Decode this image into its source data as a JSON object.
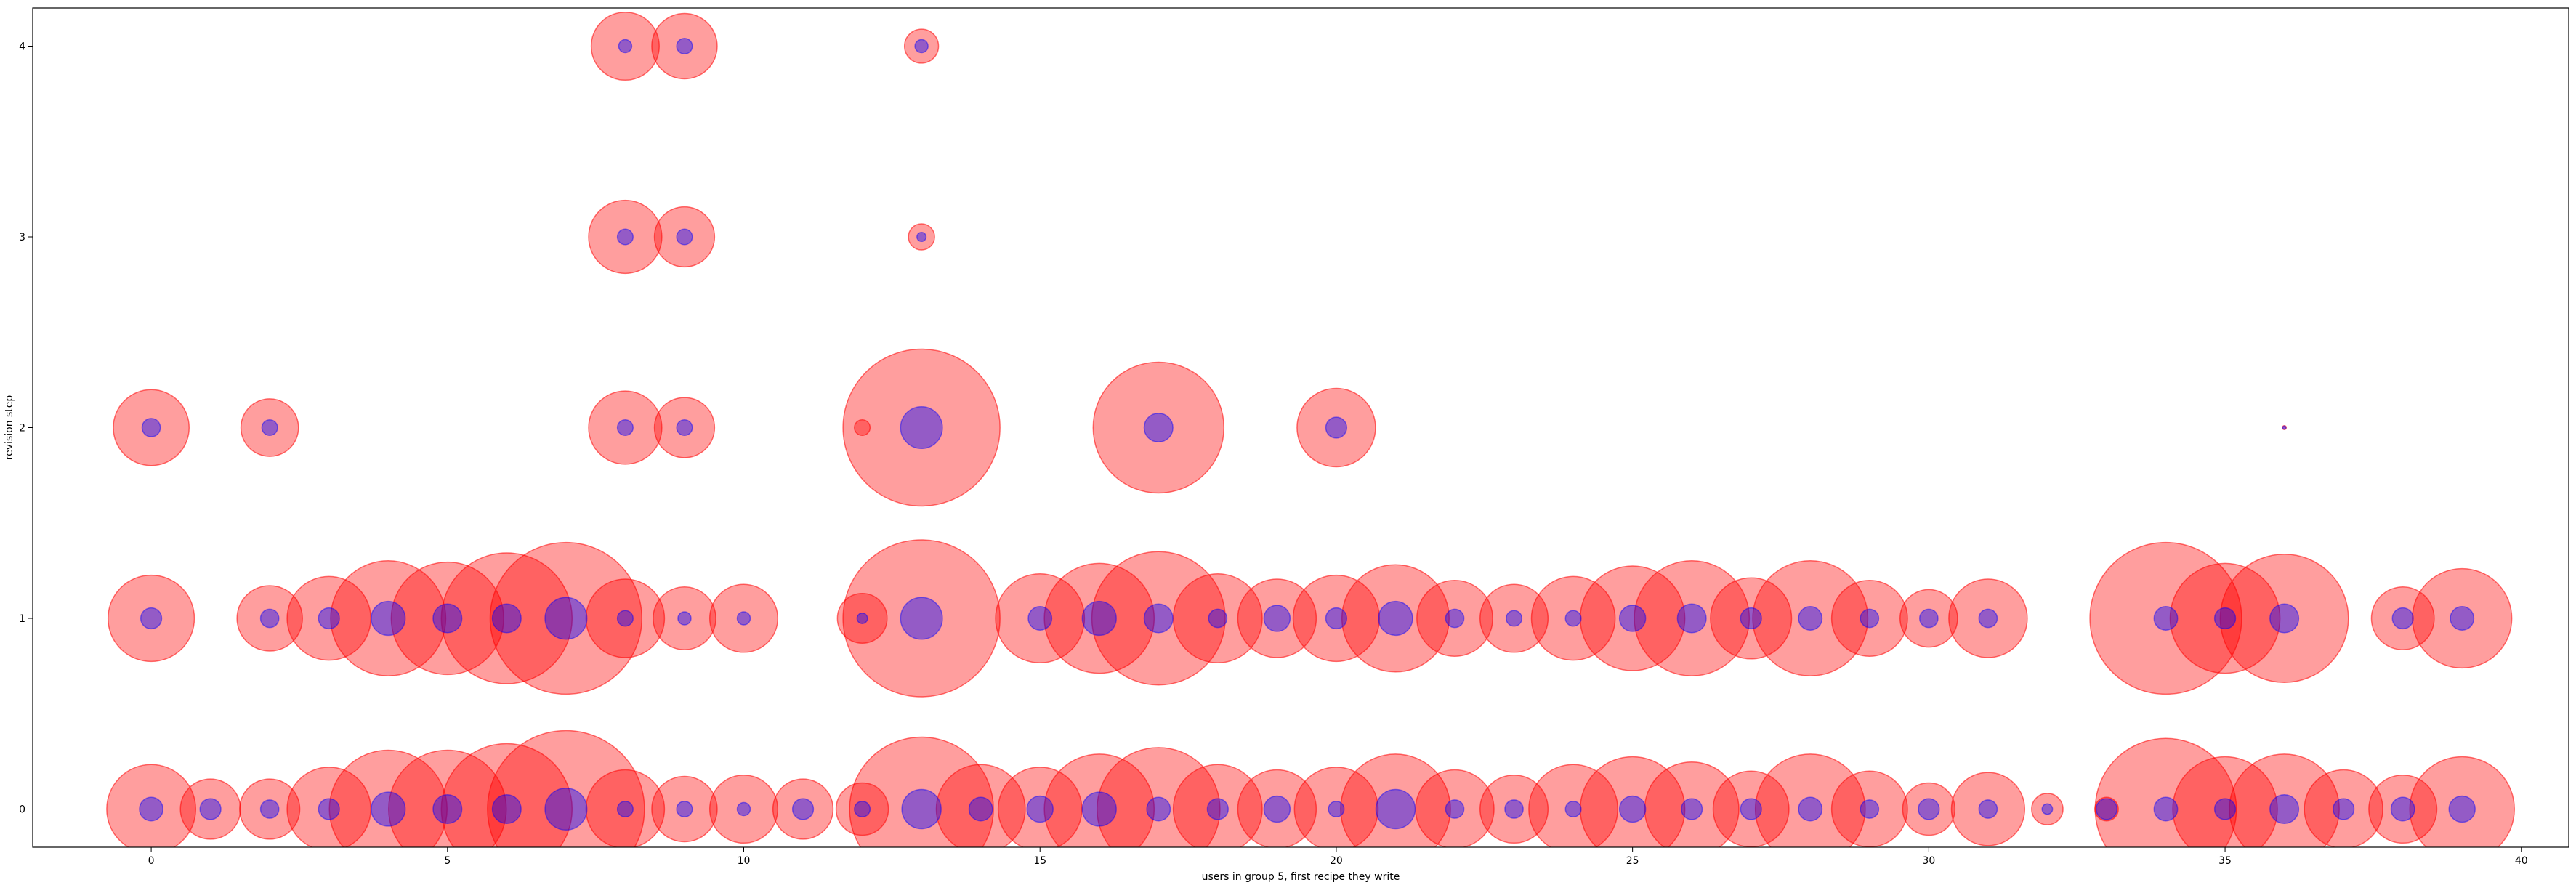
{
  "chart_data": {
    "type": "scatter",
    "title": "",
    "xlabel": "users in group 5, first recipe they write",
    "ylabel": "revision step",
    "xlim": [
      -2,
      40.8
    ],
    "ylim": [
      -0.2,
      4.2
    ],
    "xticks": [
      0,
      5,
      10,
      15,
      20,
      25,
      30,
      35,
      40
    ],
    "yticks": [
      0,
      1,
      2,
      3,
      4
    ],
    "grid": false,
    "legend": "none",
    "colors": {
      "outer": "#ff0000",
      "inner": "#0000ff"
    },
    "series": [
      {
        "role": "outer-bubbles",
        "points": [
          {
            "x": 0,
            "y": 0,
            "s": 3.4
          },
          {
            "x": 1,
            "y": 0,
            "s": 2.3
          },
          {
            "x": 2,
            "y": 0,
            "s": 2.3
          },
          {
            "x": 3,
            "y": 0,
            "s": 3.2
          },
          {
            "x": 4,
            "y": 0,
            "s": 4.5
          },
          {
            "x": 5,
            "y": 0,
            "s": 4.5
          },
          {
            "x": 6,
            "y": 0,
            "s": 5.0
          },
          {
            "x": 7,
            "y": 0,
            "s": 6.0
          },
          {
            "x": 8,
            "y": 0,
            "s": 3.0
          },
          {
            "x": 9,
            "y": 0,
            "s": 2.5
          },
          {
            "x": 10,
            "y": 0,
            "s": 2.6
          },
          {
            "x": 11,
            "y": 0,
            "s": 2.3
          },
          {
            "x": 12,
            "y": 0,
            "s": 2.0
          },
          {
            "x": 13,
            "y": 0,
            "s": 5.5
          },
          {
            "x": 14,
            "y": 0,
            "s": 3.4
          },
          {
            "x": 15,
            "y": 0,
            "s": 3.2
          },
          {
            "x": 16,
            "y": 0,
            "s": 4.2
          },
          {
            "x": 17,
            "y": 0,
            "s": 4.7
          },
          {
            "x": 18,
            "y": 0,
            "s": 3.4
          },
          {
            "x": 19,
            "y": 0,
            "s": 3.0
          },
          {
            "x": 20,
            "y": 0,
            "s": 3.2
          },
          {
            "x": 21,
            "y": 0,
            "s": 4.2
          },
          {
            "x": 22,
            "y": 0,
            "s": 3.0
          },
          {
            "x": 23,
            "y": 0,
            "s": 2.6
          },
          {
            "x": 24,
            "y": 0,
            "s": 3.4
          },
          {
            "x": 25,
            "y": 0,
            "s": 4.0
          },
          {
            "x": 26,
            "y": 0,
            "s": 3.6
          },
          {
            "x": 27,
            "y": 0,
            "s": 2.9
          },
          {
            "x": 28,
            "y": 0,
            "s": 4.2
          },
          {
            "x": 29,
            "y": 0,
            "s": 2.9
          },
          {
            "x": 30,
            "y": 0,
            "s": 2.0
          },
          {
            "x": 31,
            "y": 0,
            "s": 2.8
          },
          {
            "x": 32,
            "y": 0,
            "s": 1.2
          },
          {
            "x": 33,
            "y": 0,
            "s": 0.9
          },
          {
            "x": 34,
            "y": 0,
            "s": 5.4
          },
          {
            "x": 35,
            "y": 0,
            "s": 4.0
          },
          {
            "x": 36,
            "y": 0,
            "s": 4.2
          },
          {
            "x": 37,
            "y": 0,
            "s": 3.0
          },
          {
            "x": 38,
            "y": 0,
            "s": 2.6
          },
          {
            "x": 39,
            "y": 0,
            "s": 4.0
          },
          {
            "x": 0,
            "y": 1,
            "s": 3.3
          },
          {
            "x": 2,
            "y": 1,
            "s": 2.5
          },
          {
            "x": 3,
            "y": 1,
            "s": 3.2
          },
          {
            "x": 4,
            "y": 1,
            "s": 4.4
          },
          {
            "x": 5,
            "y": 1,
            "s": 4.3
          },
          {
            "x": 6,
            "y": 1,
            "s": 5.0
          },
          {
            "x": 7,
            "y": 1,
            "s": 5.8
          },
          {
            "x": 8,
            "y": 1,
            "s": 3.0
          },
          {
            "x": 9,
            "y": 1,
            "s": 2.4
          },
          {
            "x": 10,
            "y": 1,
            "s": 2.6
          },
          {
            "x": 12,
            "y": 1,
            "s": 1.9
          },
          {
            "x": 13,
            "y": 1,
            "s": 6.0
          },
          {
            "x": 15,
            "y": 1,
            "s": 3.4
          },
          {
            "x": 16,
            "y": 1,
            "s": 4.2
          },
          {
            "x": 17,
            "y": 1,
            "s": 5.1
          },
          {
            "x": 18,
            "y": 1,
            "s": 3.4
          },
          {
            "x": 19,
            "y": 1,
            "s": 3.0
          },
          {
            "x": 20,
            "y": 1,
            "s": 3.3
          },
          {
            "x": 21,
            "y": 1,
            "s": 4.1
          },
          {
            "x": 22,
            "y": 1,
            "s": 2.9
          },
          {
            "x": 23,
            "y": 1,
            "s": 2.6
          },
          {
            "x": 24,
            "y": 1,
            "s": 3.2
          },
          {
            "x": 25,
            "y": 1,
            "s": 4.0
          },
          {
            "x": 26,
            "y": 1,
            "s": 4.4
          },
          {
            "x": 27,
            "y": 1,
            "s": 3.1
          },
          {
            "x": 28,
            "y": 1,
            "s": 4.4
          },
          {
            "x": 29,
            "y": 1,
            "s": 2.9
          },
          {
            "x": 30,
            "y": 1,
            "s": 2.2
          },
          {
            "x": 31,
            "y": 1,
            "s": 3.0
          },
          {
            "x": 34,
            "y": 1,
            "s": 5.8
          },
          {
            "x": 35,
            "y": 1,
            "s": 4.2
          },
          {
            "x": 36,
            "y": 1,
            "s": 4.9
          },
          {
            "x": 38,
            "y": 1,
            "s": 2.4
          },
          {
            "x": 39,
            "y": 1,
            "s": 3.8
          },
          {
            "x": 0,
            "y": 2,
            "s": 2.9
          },
          {
            "x": 2,
            "y": 2,
            "s": 2.2
          },
          {
            "x": 8,
            "y": 2,
            "s": 2.8
          },
          {
            "x": 9,
            "y": 2,
            "s": 2.3
          },
          {
            "x": 12,
            "y": 2,
            "s": 0.6
          },
          {
            "x": 13,
            "y": 2,
            "s": 6.0
          },
          {
            "x": 17,
            "y": 2,
            "s": 5.0
          },
          {
            "x": 20,
            "y": 2,
            "s": 3.0
          },
          {
            "x": 36,
            "y": 2,
            "s": 0.15
          },
          {
            "x": 8,
            "y": 3,
            "s": 2.8
          },
          {
            "x": 9,
            "y": 3,
            "s": 2.3
          },
          {
            "x": 13,
            "y": 3,
            "s": 1.0
          },
          {
            "x": 8,
            "y": 4,
            "s": 2.6
          },
          {
            "x": 9,
            "y": 4,
            "s": 2.5
          },
          {
            "x": 13,
            "y": 4,
            "s": 1.3
          }
        ]
      },
      {
        "role": "inner-bubbles",
        "points": [
          {
            "x": 0,
            "y": 0,
            "s": 0.9
          },
          {
            "x": 1,
            "y": 0,
            "s": 0.8
          },
          {
            "x": 2,
            "y": 0,
            "s": 0.7
          },
          {
            "x": 3,
            "y": 0,
            "s": 0.8
          },
          {
            "x": 4,
            "y": 0,
            "s": 1.3
          },
          {
            "x": 5,
            "y": 0,
            "s": 1.1
          },
          {
            "x": 6,
            "y": 0,
            "s": 1.1
          },
          {
            "x": 7,
            "y": 0,
            "s": 1.6
          },
          {
            "x": 8,
            "y": 0,
            "s": 0.6
          },
          {
            "x": 9,
            "y": 0,
            "s": 0.6
          },
          {
            "x": 10,
            "y": 0,
            "s": 0.5
          },
          {
            "x": 11,
            "y": 0,
            "s": 0.8
          },
          {
            "x": 12,
            "y": 0,
            "s": 0.6
          },
          {
            "x": 13,
            "y": 0,
            "s": 1.5
          },
          {
            "x": 14,
            "y": 0,
            "s": 0.9
          },
          {
            "x": 15,
            "y": 0,
            "s": 1.0
          },
          {
            "x": 16,
            "y": 0,
            "s": 1.3
          },
          {
            "x": 17,
            "y": 0,
            "s": 0.9
          },
          {
            "x": 18,
            "y": 0,
            "s": 0.8
          },
          {
            "x": 19,
            "y": 0,
            "s": 1.0
          },
          {
            "x": 20,
            "y": 0,
            "s": 0.6
          },
          {
            "x": 21,
            "y": 0,
            "s": 1.5
          },
          {
            "x": 22,
            "y": 0,
            "s": 0.7
          },
          {
            "x": 23,
            "y": 0,
            "s": 0.7
          },
          {
            "x": 24,
            "y": 0,
            "s": 0.6
          },
          {
            "x": 25,
            "y": 0,
            "s": 1.0
          },
          {
            "x": 26,
            "y": 0,
            "s": 0.8
          },
          {
            "x": 27,
            "y": 0,
            "s": 0.8
          },
          {
            "x": 28,
            "y": 0,
            "s": 0.9
          },
          {
            "x": 29,
            "y": 0,
            "s": 0.7
          },
          {
            "x": 30,
            "y": 0,
            "s": 0.8
          },
          {
            "x": 31,
            "y": 0,
            "s": 0.7
          },
          {
            "x": 32,
            "y": 0,
            "s": 0.4
          },
          {
            "x": 33,
            "y": 0,
            "s": 0.8
          },
          {
            "x": 34,
            "y": 0,
            "s": 0.9
          },
          {
            "x": 35,
            "y": 0,
            "s": 0.8
          },
          {
            "x": 36,
            "y": 0,
            "s": 1.1
          },
          {
            "x": 37,
            "y": 0,
            "s": 0.8
          },
          {
            "x": 38,
            "y": 0,
            "s": 0.9
          },
          {
            "x": 39,
            "y": 0,
            "s": 1.0
          },
          {
            "x": 0,
            "y": 1,
            "s": 0.8
          },
          {
            "x": 2,
            "y": 1,
            "s": 0.7
          },
          {
            "x": 3,
            "y": 1,
            "s": 0.8
          },
          {
            "x": 4,
            "y": 1,
            "s": 1.3
          },
          {
            "x": 5,
            "y": 1,
            "s": 1.1
          },
          {
            "x": 6,
            "y": 1,
            "s": 1.1
          },
          {
            "x": 7,
            "y": 1,
            "s": 1.6
          },
          {
            "x": 8,
            "y": 1,
            "s": 0.6
          },
          {
            "x": 9,
            "y": 1,
            "s": 0.5
          },
          {
            "x": 10,
            "y": 1,
            "s": 0.5
          },
          {
            "x": 12,
            "y": 1,
            "s": 0.4
          },
          {
            "x": 13,
            "y": 1,
            "s": 1.6
          },
          {
            "x": 15,
            "y": 1,
            "s": 0.9
          },
          {
            "x": 16,
            "y": 1,
            "s": 1.3
          },
          {
            "x": 17,
            "y": 1,
            "s": 1.1
          },
          {
            "x": 18,
            "y": 1,
            "s": 0.7
          },
          {
            "x": 19,
            "y": 1,
            "s": 1.0
          },
          {
            "x": 20,
            "y": 1,
            "s": 0.8
          },
          {
            "x": 21,
            "y": 1,
            "s": 1.3
          },
          {
            "x": 22,
            "y": 1,
            "s": 0.7
          },
          {
            "x": 23,
            "y": 1,
            "s": 0.6
          },
          {
            "x": 24,
            "y": 1,
            "s": 0.6
          },
          {
            "x": 25,
            "y": 1,
            "s": 1.0
          },
          {
            "x": 26,
            "y": 1,
            "s": 1.1
          },
          {
            "x": 27,
            "y": 1,
            "s": 0.8
          },
          {
            "x": 28,
            "y": 1,
            "s": 0.9
          },
          {
            "x": 29,
            "y": 1,
            "s": 0.7
          },
          {
            "x": 30,
            "y": 1,
            "s": 0.7
          },
          {
            "x": 31,
            "y": 1,
            "s": 0.7
          },
          {
            "x": 34,
            "y": 1,
            "s": 0.9
          },
          {
            "x": 35,
            "y": 1,
            "s": 0.8
          },
          {
            "x": 36,
            "y": 1,
            "s": 1.1
          },
          {
            "x": 38,
            "y": 1,
            "s": 0.8
          },
          {
            "x": 39,
            "y": 1,
            "s": 0.9
          },
          {
            "x": 0,
            "y": 2,
            "s": 0.7
          },
          {
            "x": 2,
            "y": 2,
            "s": 0.6
          },
          {
            "x": 8,
            "y": 2,
            "s": 0.6
          },
          {
            "x": 9,
            "y": 2,
            "s": 0.6
          },
          {
            "x": 13,
            "y": 2,
            "s": 1.6
          },
          {
            "x": 17,
            "y": 2,
            "s": 1.1
          },
          {
            "x": 20,
            "y": 2,
            "s": 0.8
          },
          {
            "x": 36,
            "y": 2,
            "s": 0.12
          },
          {
            "x": 8,
            "y": 3,
            "s": 0.6
          },
          {
            "x": 9,
            "y": 3,
            "s": 0.6
          },
          {
            "x": 13,
            "y": 3,
            "s": 0.35
          },
          {
            "x": 8,
            "y": 4,
            "s": 0.5
          },
          {
            "x": 9,
            "y": 4,
            "s": 0.6
          },
          {
            "x": 13,
            "y": 4,
            "s": 0.5
          }
        ]
      }
    ]
  }
}
